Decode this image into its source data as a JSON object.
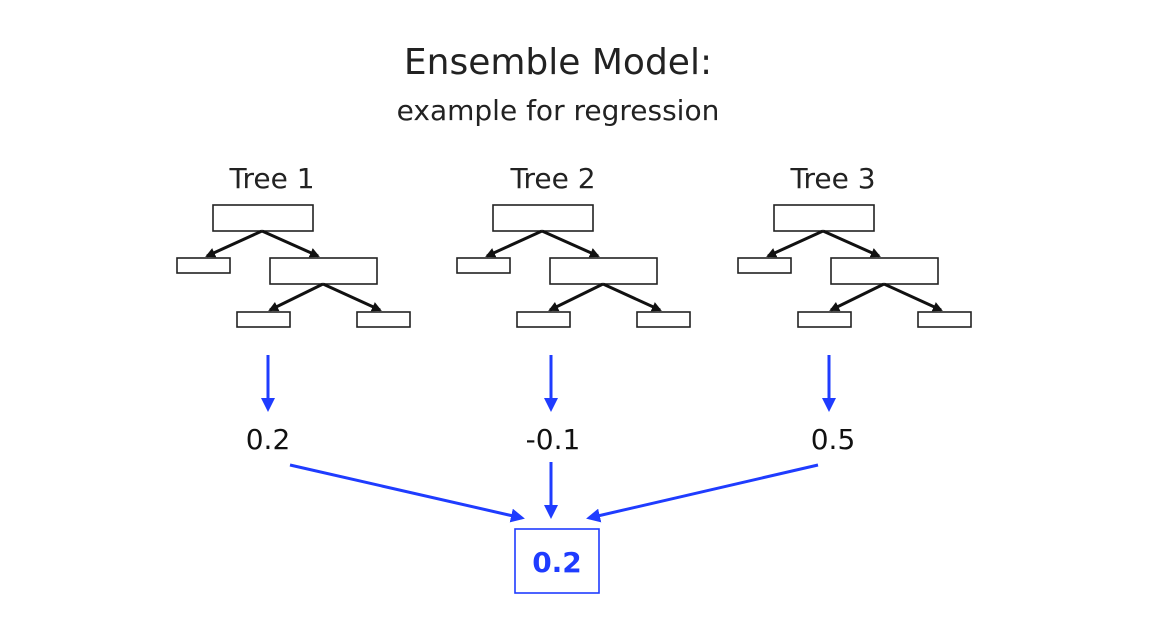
{
  "title": "Ensemble Model:",
  "subtitle": "example for regression",
  "trees": [
    {
      "label": "Tree 1",
      "prediction": "0.2"
    },
    {
      "label": "Tree 2",
      "prediction": "-0.1"
    },
    {
      "label": "Tree 3",
      "prediction": "0.5"
    }
  ],
  "result": "0.2",
  "colors": {
    "accent": "#1f3cff",
    "ink": "#111111"
  }
}
